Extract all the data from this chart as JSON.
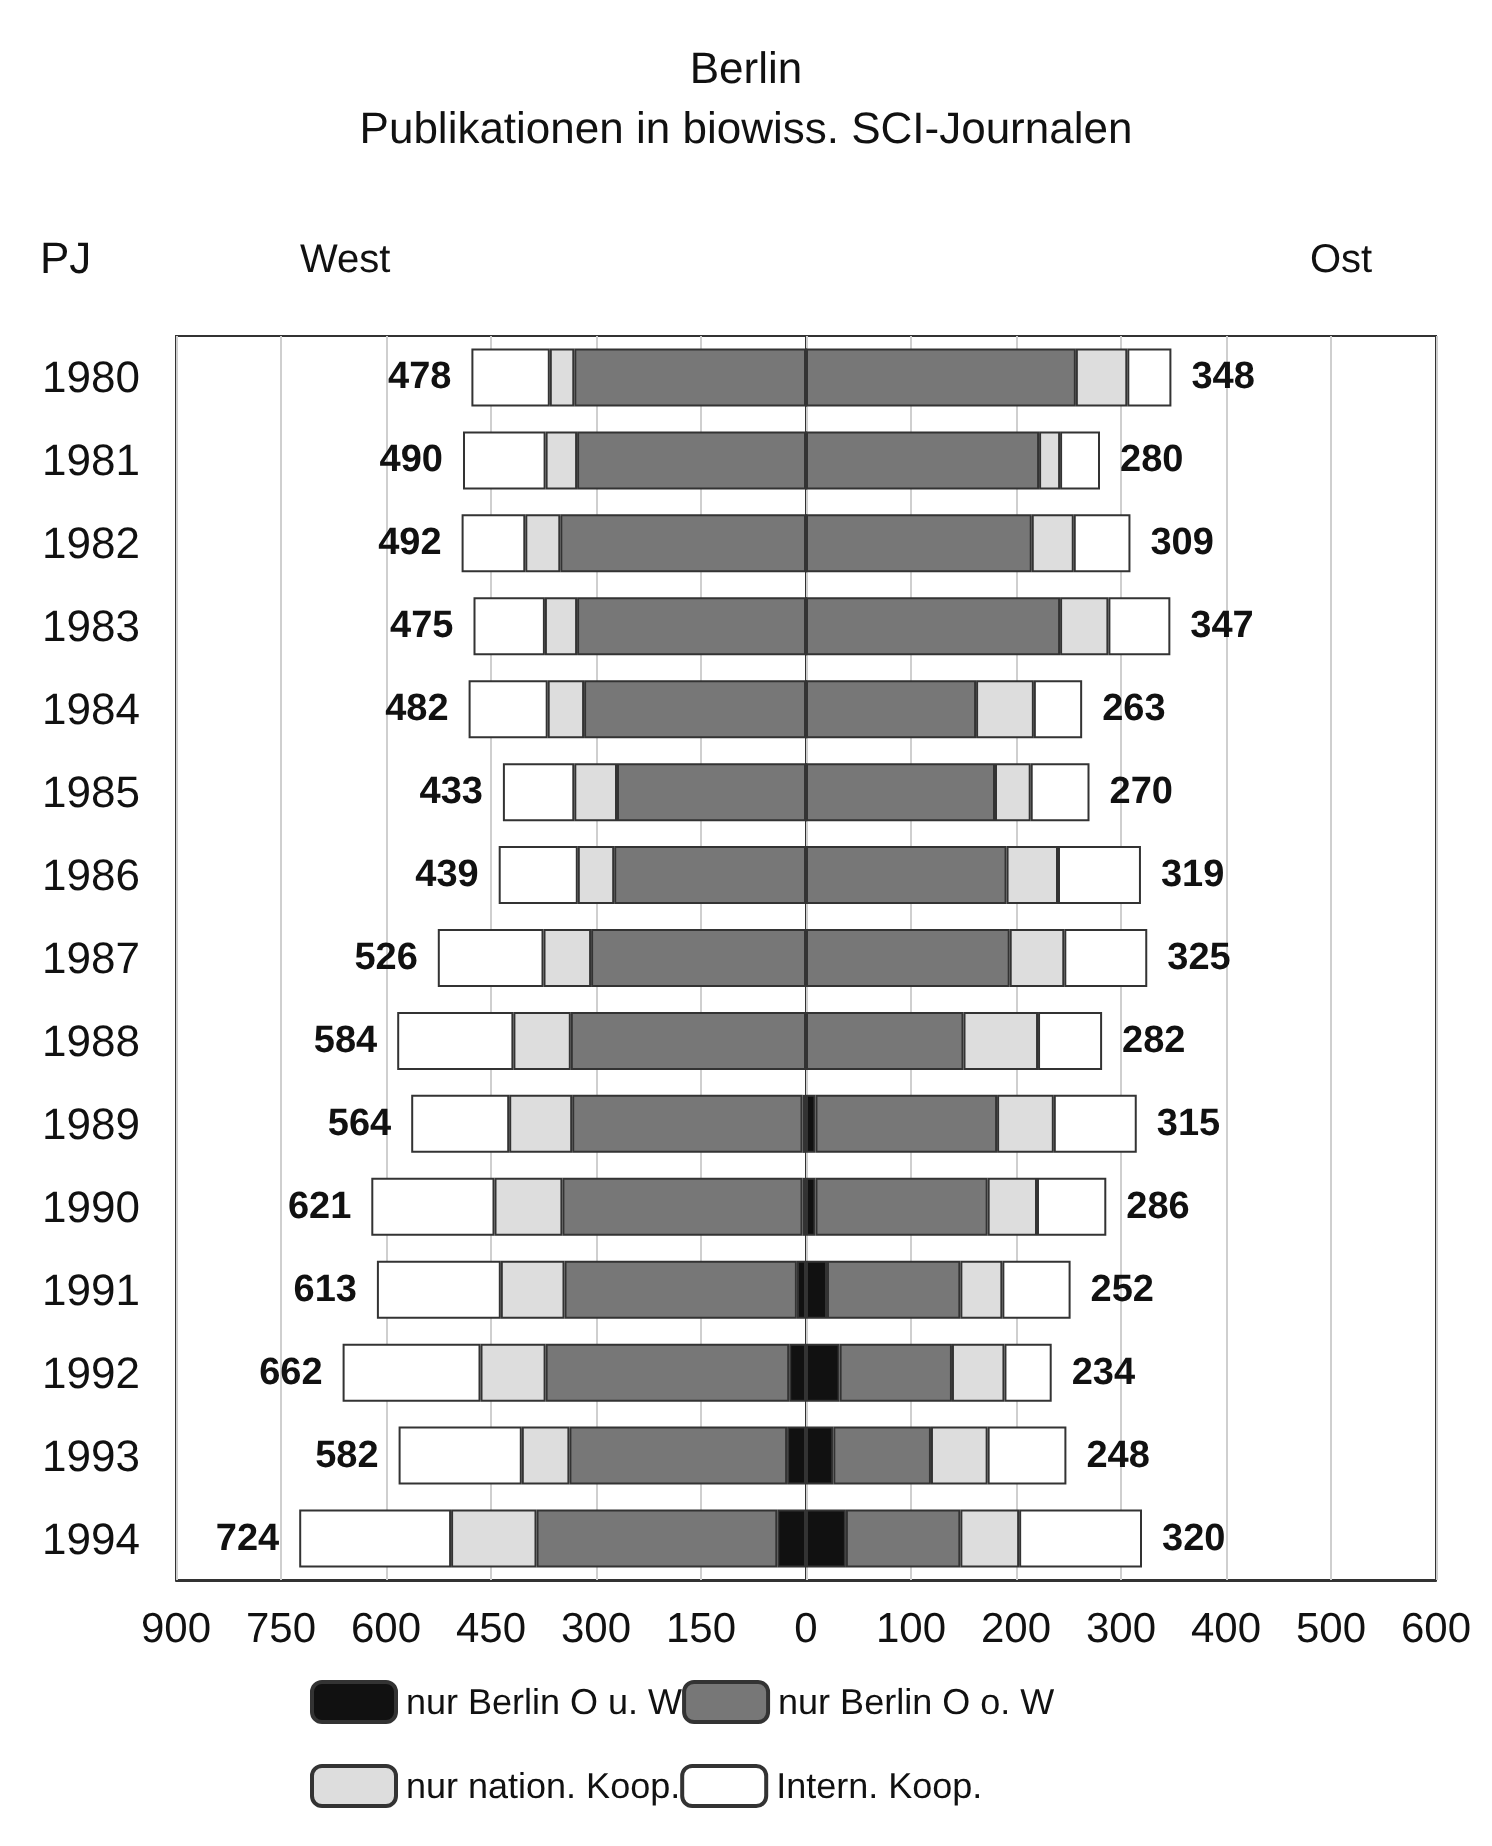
{
  "chart_data": [
    {
      "type": "bar",
      "orientation": "horizontal",
      "stacked": true,
      "title": "Berlin",
      "subtitle": "Publikationen in biowiss. SCI-Journalen",
      "ylabel": "PJ",
      "annotations": [
        "West"
      ],
      "categories": [
        "1980",
        "1981",
        "1982",
        "1983",
        "1984",
        "1985",
        "1986",
        "1987",
        "1988",
        "1989",
        "1990",
        "1991",
        "1992",
        "1993",
        "1994"
      ],
      "xlim": [
        900,
        0
      ],
      "xticks": [
        900,
        750,
        600,
        450,
        300,
        150,
        {
          "value": 0,
          "label": null
        }
      ],
      "grid": "x",
      "legend": "bottom",
      "series": [
        {
          "name": "nur Berlin O u. W",
          "color": "#111111",
          "values": [
            0,
            0,
            0,
            0,
            0,
            0,
            0,
            0,
            0,
            5,
            5,
            13,
            24,
            27,
            41
          ]
        },
        {
          "name": "nur Berlin O o. W",
          "color": "#777777",
          "values": [
            331,
            327,
            351,
            327,
            317,
            270,
            274,
            307,
            336,
            329,
            343,
            332,
            348,
            311,
            344
          ]
        },
        {
          "name": "nur nation. Koop.",
          "color": "#dddddd",
          "values": [
            35,
            45,
            50,
            46,
            52,
            61,
            52,
            68,
            82,
            90,
            97,
            91,
            93,
            68,
            122
          ]
        },
        {
          "name": "Intern. Koop.",
          "color": "#ffffff",
          "values": [
            112,
            118,
            91,
            102,
            113,
            102,
            113,
            151,
            166,
            140,
            176,
            177,
            197,
            176,
            217
          ]
        }
      ],
      "totals": [
        "478",
        "490",
        "492",
        "475",
        "482",
        "433",
        "439",
        "526",
        "584",
        "564",
        "621",
        "613",
        "662",
        "582",
        "724"
      ]
    },
    {
      "type": "bar",
      "orientation": "horizontal",
      "stacked": true,
      "annotations": [
        "Ost"
      ],
      "categories": [
        "1980",
        "1981",
        "1982",
        "1983",
        "1984",
        "1985",
        "1986",
        "1987",
        "1988",
        "1989",
        "1990",
        "1991",
        "1992",
        "1993",
        "1994"
      ],
      "xlim": [
        0,
        600
      ],
      "xticks": [
        0,
        100,
        200,
        300,
        400,
        500,
        600
      ],
      "grid": "x",
      "tick_labels": "x",
      "series": [
        {
          "color": "#111111",
          "values": [
            0,
            0,
            0,
            0,
            0,
            0,
            0,
            0,
            0,
            9,
            9,
            20,
            32,
            26,
            38
          ]
        },
        {
          "color": "#777777",
          "values": [
            257,
            222,
            215,
            242,
            162,
            180,
            191,
            194,
            150,
            173,
            164,
            127,
            107,
            93,
            109
          ]
        },
        {
          "color": "#dddddd",
          "values": [
            49,
            20,
            40,
            46,
            55,
            34,
            49,
            52,
            71,
            54,
            47,
            40,
            50,
            54,
            56
          ]
        },
        {
          "color": "#ffffff",
          "values": [
            42,
            38,
            54,
            59,
            46,
            56,
            79,
            79,
            61,
            79,
            66,
            65,
            45,
            75,
            117
          ]
        }
      ],
      "totals": [
        "348",
        "280",
        "309",
        "347",
        "263",
        "270",
        "319",
        "325",
        "282",
        "315",
        "286",
        "252",
        "234",
        "248",
        "320"
      ]
    }
  ]
}
